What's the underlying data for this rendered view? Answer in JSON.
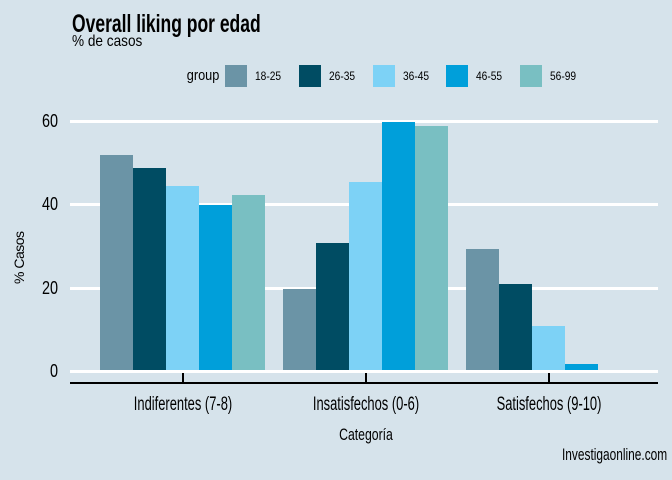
{
  "page": {
    "title": "Overall liking por edad",
    "subtitle": "% de casos",
    "watermark": "Investigaonline.com"
  },
  "colors": {
    "background": "#D6E3EB",
    "gridline": "#FFFFFF",
    "axis": "#000000",
    "text": "#000000"
  },
  "chart_data": {
    "type": "bar",
    "title": "Overall liking por edad",
    "subtitle": "% de casos",
    "legend_title": "group",
    "legend_position": "top",
    "grid": true,
    "xlabel": "Categoría",
    "ylabel": "% Casos",
    "ylim": [
      0,
      60
    ],
    "yticks": [
      0,
      20,
      40,
      60
    ],
    "categories": [
      "Indiferentes (7-8)",
      "Insatisfechos (0-6)",
      "Satisfechos (9-10)"
    ],
    "series": [
      {
        "name": "18-25",
        "color": "#6B94A6",
        "values": [
          51.5,
          19.5,
          29
        ]
      },
      {
        "name": "26-35",
        "color": "#004C63",
        "values": [
          48.5,
          30.5,
          20.5
        ]
      },
      {
        "name": "36-45",
        "color": "#7DD2F6",
        "values": [
          44,
          45,
          10.5
        ]
      },
      {
        "name": "46-55",
        "color": "#009FDA",
        "values": [
          39.5,
          59.5,
          1.5
        ]
      },
      {
        "name": "56-99",
        "color": "#79BFC2",
        "values": [
          42,
          58.5,
          0
        ]
      }
    ]
  }
}
